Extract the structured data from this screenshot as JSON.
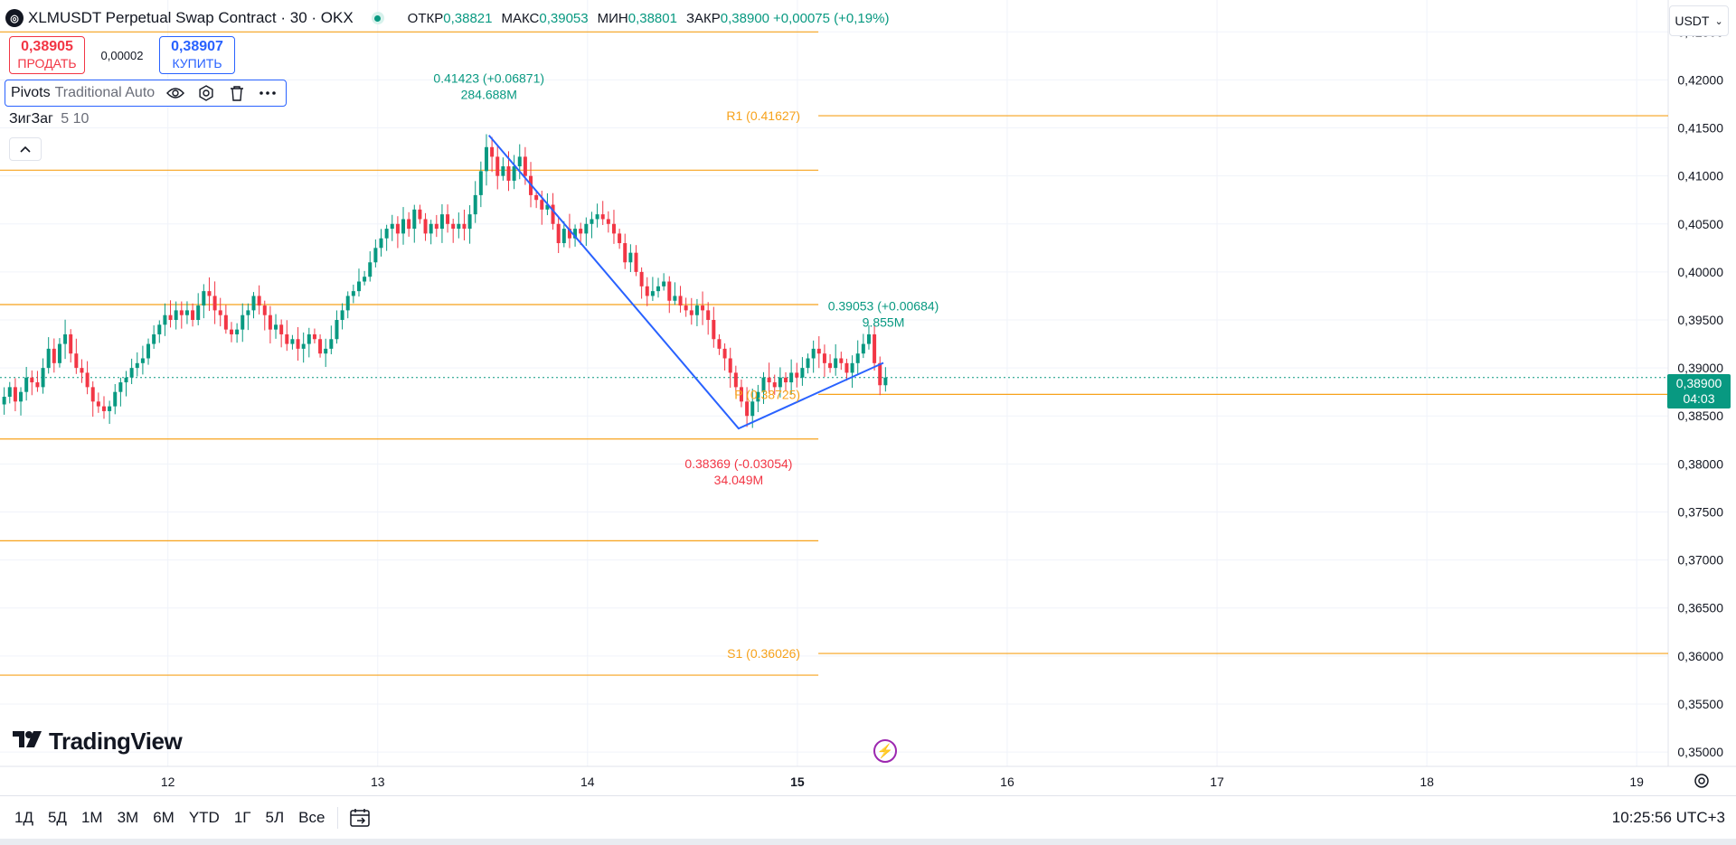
{
  "header": {
    "title": "XLMUSDT Perpetual Swap Contract · 30 · OKX",
    "ohlc": [
      {
        "label": "ОТКР",
        "value": "0,38821"
      },
      {
        "label": "МАКС",
        "value": "0,39053"
      },
      {
        "label": "МИН",
        "value": "0,38801"
      },
      {
        "label": "ЗАКР",
        "value": "0,38900"
      },
      {
        "label": "",
        "value": "+0,00075 (+0,19%)"
      }
    ]
  },
  "trade": {
    "sell_price": "0,38905",
    "sell_label": "ПРОДАТЬ",
    "spread": "0,00002",
    "buy_price": "0,38907",
    "buy_label": "КУПИТЬ"
  },
  "indicators": {
    "pivots_name": "Pivots",
    "pivots_args": "Traditional Auto",
    "zigzag_name": "ЗигЗаг",
    "zigzag_args": "5 10"
  },
  "currency": "USDT",
  "last_price": {
    "price": "0,38900",
    "countdown": "04:03"
  },
  "bottom": {
    "ranges": [
      "1Д",
      "5Д",
      "1М",
      "3М",
      "6М",
      "YTD",
      "1Г",
      "5Л",
      "Все"
    ],
    "clock": "10:25:56 UTC+3"
  },
  "brand": "TradingView",
  "colors": {
    "up": "#089981",
    "down": "#f23645",
    "pivot": "#f7a21b",
    "zigzag": "#2962ff",
    "buy": "#2962ff",
    "sell": "#f23645"
  },
  "chart_data": {
    "type": "candlestick",
    "symbol": "XLMUSDT",
    "interval": "30",
    "x_ticks": [
      "12",
      "13",
      "14",
      "15",
      "16",
      "17",
      "18",
      "19"
    ],
    "y_ticks": [
      "0,42500",
      "0,42000",
      "0,41500",
      "0,41000",
      "0,40500",
      "0,40000",
      "0,39500",
      "0,39000",
      "0,38500",
      "0,38000",
      "0,37500",
      "0,37000",
      "0,36500",
      "0,36000",
      "0,35500",
      "0,35000"
    ],
    "ylim": [
      0.3485,
      0.4255
    ],
    "xlim": [
      11.2,
      19.15
    ],
    "candles_close": [
      0.387,
      0.388,
      0.3865,
      0.3875,
      0.389,
      0.3885,
      0.388,
      0.39,
      0.392,
      0.3905,
      0.3925,
      0.3935,
      0.3915,
      0.39,
      0.3895,
      0.388,
      0.3865,
      0.386,
      0.3855,
      0.386,
      0.3875,
      0.3885,
      0.389,
      0.39,
      0.3905,
      0.391,
      0.3925,
      0.3935,
      0.3945,
      0.3955,
      0.395,
      0.396,
      0.3955,
      0.396,
      0.395,
      0.3965,
      0.398,
      0.3975,
      0.396,
      0.3955,
      0.394,
      0.3935,
      0.394,
      0.3955,
      0.396,
      0.3975,
      0.3965,
      0.3955,
      0.394,
      0.3945,
      0.3935,
      0.3925,
      0.393,
      0.392,
      0.3925,
      0.3935,
      0.393,
      0.3915,
      0.392,
      0.393,
      0.395,
      0.396,
      0.3975,
      0.398,
      0.399,
      0.3995,
      0.401,
      0.4025,
      0.4035,
      0.4045,
      0.405,
      0.404,
      0.4055,
      0.4045,
      0.4065,
      0.4055,
      0.404,
      0.405,
      0.4045,
      0.406,
      0.405,
      0.4045,
      0.405,
      0.4045,
      0.406,
      0.408,
      0.4105,
      0.413,
      0.412,
      0.41,
      0.411,
      0.4095,
      0.411,
      0.412,
      0.41,
      0.408,
      0.4075,
      0.4065,
      0.407,
      0.405,
      0.403,
      0.4045,
      0.4035,
      0.4045,
      0.404,
      0.405,
      0.4055,
      0.406,
      0.4055,
      0.405,
      0.404,
      0.403,
      0.401,
      0.402,
      0.4,
      0.3985,
      0.3975,
      0.398,
      0.3985,
      0.399,
      0.397,
      0.3975,
      0.3965,
      0.396,
      0.3955,
      0.3965,
      0.396,
      0.395,
      0.393,
      0.392,
      0.391,
      0.3895,
      0.388,
      0.3865,
      0.385,
      0.3865,
      0.3875,
      0.389,
      0.3885,
      0.388,
      0.389,
      0.3885,
      0.3895,
      0.389,
      0.39,
      0.391,
      0.392,
      0.3915,
      0.3905,
      0.39,
      0.391,
      0.3905,
      0.3895,
      0.3905,
      0.3915,
      0.3925,
      0.3935,
      0.3905,
      0.3882,
      0.389
    ],
    "pivot_levels": [
      {
        "label": "R1 (0.41627)",
        "value": 0.41627,
        "x_from": 15.1,
        "x_to": 19.15
      },
      {
        "label": "P (0.38725)",
        "value": 0.38725,
        "x_from": 15.1,
        "x_to": 19.15
      },
      {
        "label": "S1 (0.36026)",
        "value": 0.36026,
        "x_from": 15.1,
        "x_to": 19.15
      },
      {
        "value": 0.425,
        "x_from": 11.2,
        "x_to": 15.1
      },
      {
        "value": 0.4106,
        "x_from": 11.2,
        "x_to": 15.1
      },
      {
        "value": 0.3966,
        "x_from": 11.2,
        "x_to": 15.1
      },
      {
        "value": 0.3826,
        "x_from": 11.2,
        "x_to": 15.1
      },
      {
        "value": 0.372,
        "x_from": 11.2,
        "x_to": 15.1
      },
      {
        "value": 0.358,
        "x_from": 11.2,
        "x_to": 15.1
      }
    ],
    "zigzag": [
      {
        "x": 13.53,
        "y": 0.41423,
        "label": "0.41423 (+0.06871)",
        "volume": "284.688M"
      },
      {
        "x": 14.72,
        "y": 0.38369,
        "label": "0.38369 (-0.03054)",
        "volume": "34.049M"
      },
      {
        "x": 15.41,
        "y": 0.39053,
        "label": "0.39053 (+0.00684)",
        "volume": "9.855M"
      }
    ],
    "last_price": 0.389
  }
}
